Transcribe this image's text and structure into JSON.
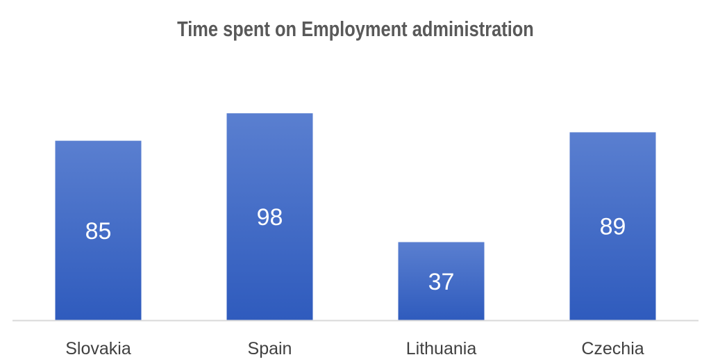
{
  "chart_data": {
    "type": "bar",
    "title": "Time spent on Employment administration",
    "categories": [
      "Slovakia",
      "Spain",
      "Lithuania",
      "Czechia"
    ],
    "values": [
      85,
      98,
      37,
      89
    ],
    "xlabel": "",
    "ylabel": "",
    "ylim": [
      0,
      150
    ],
    "grid": false,
    "legend": "none",
    "data_labels": true,
    "colors": {
      "bar_top": "#5a7fd0",
      "bar_bottom": "#2f5bbd",
      "axis": "#d9d9d9",
      "label": "#ffffff",
      "tick": "#404040",
      "title": "#595959"
    }
  }
}
